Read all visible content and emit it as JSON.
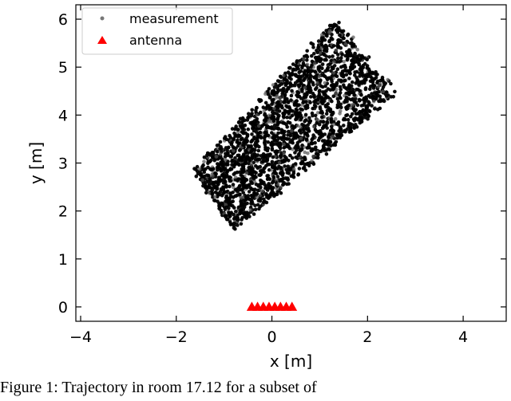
{
  "chart_data": {
    "type": "scatter",
    "title": "",
    "xlabel": "x [m]",
    "ylabel": "y [m]",
    "xlim": [
      -4.1,
      4.9
    ],
    "ylim": [
      -0.3,
      6.3
    ],
    "xticks": [
      -4,
      -2,
      0,
      2,
      4
    ],
    "yticks": [
      0,
      1,
      2,
      3,
      4,
      5,
      6
    ],
    "xtick_labels": [
      "−4",
      "−2",
      "0",
      "2",
      "4"
    ],
    "ytick_labels": [
      "0",
      "1",
      "2",
      "3",
      "4",
      "5",
      "6"
    ],
    "grid": false,
    "legend_position": "top-left",
    "colors": {
      "measurement": "#000000",
      "antenna": "#ff0000"
    },
    "series": [
      {
        "name": "measurement",
        "marker": "dot",
        "region_corners": [
          [
            -1.65,
            2.85
          ],
          [
            -0.8,
            1.6
          ],
          [
            2.6,
            4.45
          ],
          [
            1.35,
            6.0
          ]
        ],
        "approx_point_count": 2400
      },
      {
        "name": "antenna",
        "marker": "triangle",
        "x": [
          -0.42,
          -0.3,
          -0.18,
          -0.06,
          0.06,
          0.18,
          0.3,
          0.42
        ],
        "y": [
          0,
          0,
          0,
          0,
          0,
          0,
          0,
          0
        ]
      }
    ]
  },
  "caption": "Figure 1: Trajectory in room 17.12 for a subset of"
}
